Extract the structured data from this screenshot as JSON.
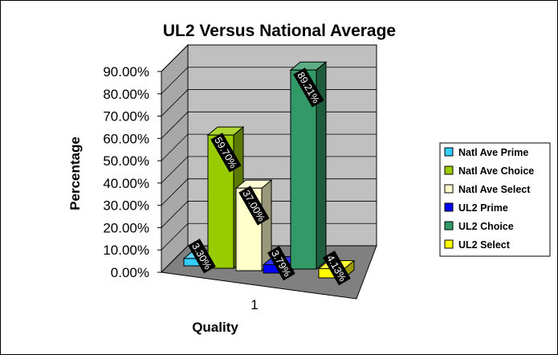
{
  "chart_data": {
    "type": "bar",
    "title": "UL2 Versus National Average",
    "xlabel": "Quality",
    "ylabel": "Percentage",
    "categories": [
      "1"
    ],
    "ylim": [
      0,
      90
    ],
    "yticks": [
      "0.00%",
      "10.00%",
      "20.00%",
      "30.00%",
      "40.00%",
      "50.00%",
      "60.00%",
      "70.00%",
      "80.00%",
      "90.00%"
    ],
    "grid": true,
    "legend_position": "right",
    "series": [
      {
        "name": "Natl Ave Prime",
        "values": [
          3.3
        ],
        "label": "3.30%",
        "color": "#33ccff"
      },
      {
        "name": "Natl Ave Choice",
        "values": [
          59.7
        ],
        "label": "59.70%",
        "color": "#99cc00"
      },
      {
        "name": "Natl Ave Select",
        "values": [
          37.0
        ],
        "label": "37.00%",
        "color": "#ffffcc"
      },
      {
        "name": "UL2 Prime",
        "values": [
          3.79
        ],
        "label": "3.79%",
        "color": "#0000ff"
      },
      {
        "name": "UL2 Choice",
        "values": [
          89.21
        ],
        "label": "89.21%",
        "color": "#339966"
      },
      {
        "name": "UL2 Select",
        "values": [
          4.13
        ],
        "label": "4.13%",
        "color": "#ffff00"
      }
    ]
  }
}
